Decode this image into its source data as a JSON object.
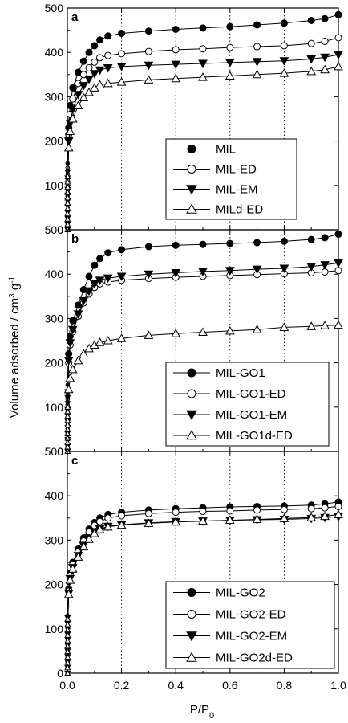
{
  "figure": {
    "ylabel": "Volume adsorbed / cm",
    "ylabel_sup": "3",
    "ylabel_rest": ".g",
    "ylabel_sup2": "-1",
    "xlabel_main": "P/P",
    "xlabel_sub": "0"
  },
  "chart_data": [
    {
      "panel": "a",
      "type": "line",
      "xlim": [
        0,
        1.0
      ],
      "ylim": [
        0,
        500
      ],
      "x_ticks": [
        0.0,
        0.2,
        0.4,
        0.6,
        0.8,
        1.0
      ],
      "x_tick_labels": [
        "0.0",
        "0.2",
        "0.4",
        "0.6",
        "0.8",
        "1.0"
      ],
      "y_ticks": [
        0,
        100,
        200,
        300,
        400,
        500
      ],
      "y_tick_labels": [
        "0",
        "100",
        "200",
        "300",
        "400",
        "500"
      ],
      "vlines": [
        0.2,
        0.4,
        0.6,
        0.8
      ],
      "legend_position": "center-right",
      "series": [
        {
          "name": "MIL",
          "marker": "filled-circle",
          "x": [
            0,
            0.002,
            0.005,
            0.01,
            0.02,
            0.04,
            0.06,
            0.08,
            0.1,
            0.12,
            0.15,
            0.2,
            0.3,
            0.4,
            0.5,
            0.6,
            0.7,
            0.8,
            0.9,
            0.95,
            1.0
          ],
          "y": [
            0,
            150,
            230,
            280,
            320,
            355,
            380,
            400,
            415,
            428,
            437,
            443,
            448,
            452,
            455,
            458,
            462,
            466,
            472,
            476,
            485
          ]
        },
        {
          "name": "MIL-ED",
          "marker": "open-circle",
          "x": [
            0,
            0.002,
            0.005,
            0.01,
            0.02,
            0.04,
            0.06,
            0.08,
            0.1,
            0.12,
            0.15,
            0.2,
            0.3,
            0.4,
            0.5,
            0.6,
            0.7,
            0.8,
            0.9,
            0.95,
            1.0
          ],
          "y": [
            0,
            140,
            215,
            260,
            295,
            330,
            350,
            365,
            378,
            388,
            393,
            397,
            402,
            406,
            408,
            411,
            413,
            415,
            420,
            425,
            433
          ]
        },
        {
          "name": "MIL-EM",
          "marker": "filled-down-triangle",
          "x": [
            0,
            0.002,
            0.005,
            0.01,
            0.02,
            0.04,
            0.06,
            0.08,
            0.1,
            0.12,
            0.15,
            0.2,
            0.3,
            0.4,
            0.5,
            0.6,
            0.7,
            0.8,
            0.9,
            0.95,
            1.0
          ],
          "y": [
            0,
            130,
            200,
            240,
            272,
            305,
            325,
            340,
            352,
            360,
            365,
            368,
            371,
            373,
            375,
            377,
            379,
            381,
            385,
            389,
            395
          ]
        },
        {
          "name": "MILd-ED",
          "marker": "open-up-triangle",
          "x": [
            0,
            0.002,
            0.005,
            0.01,
            0.02,
            0.04,
            0.06,
            0.08,
            0.1,
            0.12,
            0.15,
            0.2,
            0.3,
            0.4,
            0.5,
            0.6,
            0.7,
            0.8,
            0.9,
            0.95,
            1.0
          ],
          "y": [
            0,
            120,
            185,
            222,
            250,
            280,
            298,
            310,
            320,
            327,
            330,
            333,
            338,
            341,
            344,
            347,
            350,
            353,
            357,
            361,
            368
          ]
        }
      ]
    },
    {
      "panel": "b",
      "type": "line",
      "xlim": [
        0,
        1.0
      ],
      "ylim": [
        0,
        500
      ],
      "x_ticks": [
        0.0,
        0.2,
        0.4,
        0.6,
        0.8,
        1.0
      ],
      "x_tick_labels": [
        "0.0",
        "0.2",
        "0.4",
        "0.6",
        "0.8",
        "1.0"
      ],
      "y_ticks": [
        0,
        100,
        200,
        300,
        400,
        500
      ],
      "y_tick_labels": [
        "0",
        "100",
        "200",
        "300",
        "400",
        "500"
      ],
      "vlines": [
        0.2,
        0.4,
        0.6,
        0.8
      ],
      "legend_position": "center-right",
      "series": [
        {
          "name": "MIL-GO1",
          "marker": "filled-circle",
          "x": [
            0,
            0.002,
            0.005,
            0.01,
            0.02,
            0.04,
            0.06,
            0.08,
            0.1,
            0.12,
            0.15,
            0.2,
            0.3,
            0.4,
            0.5,
            0.6,
            0.7,
            0.8,
            0.9,
            0.95,
            1.0
          ],
          "y": [
            0,
            150,
            220,
            260,
            295,
            330,
            365,
            395,
            420,
            435,
            448,
            455,
            462,
            465,
            467,
            469,
            471,
            474,
            478,
            482,
            490
          ]
        },
        {
          "name": "MIL-GO1-ED",
          "marker": "open-circle",
          "x": [
            0,
            0.002,
            0.005,
            0.01,
            0.02,
            0.04,
            0.06,
            0.08,
            0.1,
            0.12,
            0.15,
            0.2,
            0.3,
            0.4,
            0.5,
            0.6,
            0.7,
            0.8,
            0.9,
            0.95,
            1.0
          ],
          "y": [
            0,
            130,
            200,
            240,
            270,
            305,
            335,
            355,
            370,
            378,
            382,
            386,
            390,
            393,
            395,
            397,
            399,
            401,
            403,
            405,
            408
          ]
        },
        {
          "name": "MIL-GO1-EM",
          "marker": "filled-down-triangle",
          "x": [
            0,
            0.002,
            0.005,
            0.01,
            0.02,
            0.04,
            0.06,
            0.08,
            0.1,
            0.12,
            0.15,
            0.2,
            0.3,
            0.4,
            0.5,
            0.6,
            0.7,
            0.8,
            0.9,
            0.95,
            1.0
          ],
          "y": [
            0,
            135,
            205,
            245,
            275,
            310,
            340,
            362,
            378,
            386,
            391,
            395,
            400,
            403,
            406,
            408,
            411,
            413,
            417,
            421,
            425
          ]
        },
        {
          "name": "MIL-GO1d-ED",
          "marker": "open-up-triangle",
          "x": [
            0,
            0.002,
            0.005,
            0.01,
            0.02,
            0.04,
            0.06,
            0.08,
            0.1,
            0.12,
            0.15,
            0.2,
            0.3,
            0.4,
            0.5,
            0.6,
            0.7,
            0.8,
            0.9,
            0.95,
            1.0
          ],
          "y": [
            0,
            100,
            140,
            165,
            185,
            205,
            220,
            232,
            240,
            246,
            250,
            255,
            262,
            266,
            269,
            272,
            275,
            280,
            282,
            284,
            285
          ]
        }
      ]
    },
    {
      "panel": "c",
      "type": "line",
      "xlim": [
        0,
        1.0
      ],
      "ylim": [
        0,
        500
      ],
      "x_ticks": [
        0.0,
        0.2,
        0.4,
        0.6,
        0.8,
        1.0
      ],
      "x_tick_labels": [
        "0.0",
        "0.2",
        "0.4",
        "0.6",
        "0.8",
        "1.0"
      ],
      "y_ticks": [
        0,
        100,
        200,
        300,
        400,
        500
      ],
      "y_tick_labels": [
        "0",
        "100",
        "200",
        "300",
        "400",
        "500"
      ],
      "vlines": [
        0.2,
        0.4,
        0.6,
        0.8
      ],
      "legend_position": "bottom-right",
      "series": [
        {
          "name": "MIL-GO2",
          "marker": "filled-circle",
          "x": [
            0,
            0.002,
            0.005,
            0.01,
            0.02,
            0.04,
            0.06,
            0.08,
            0.1,
            0.12,
            0.15,
            0.2,
            0.3,
            0.4,
            0.5,
            0.6,
            0.7,
            0.8,
            0.9,
            0.95,
            1.0
          ],
          "y": [
            0,
            130,
            190,
            225,
            250,
            280,
            305,
            325,
            340,
            350,
            358,
            363,
            368,
            371,
            373,
            375,
            376,
            377,
            379,
            382,
            386
          ]
        },
        {
          "name": "MIL-GO2-ED",
          "marker": "open-circle",
          "x": [
            0,
            0.002,
            0.005,
            0.01,
            0.02,
            0.04,
            0.06,
            0.08,
            0.1,
            0.12,
            0.15,
            0.2,
            0.3,
            0.4,
            0.5,
            0.6,
            0.7,
            0.8,
            0.9,
            0.95,
            1.0
          ],
          "y": [
            0,
            128,
            185,
            220,
            245,
            273,
            298,
            318,
            333,
            342,
            350,
            355,
            360,
            363,
            365,
            366,
            368,
            369,
            371,
            373,
            376
          ]
        },
        {
          "name": "MIL-GO2-EM",
          "marker": "filled-down-triangle",
          "x": [
            0,
            0.002,
            0.005,
            0.01,
            0.02,
            0.04,
            0.06,
            0.08,
            0.1,
            0.12,
            0.15,
            0.2,
            0.3,
            0.4,
            0.5,
            0.6,
            0.7,
            0.8,
            0.9,
            0.95,
            1.0
          ],
          "y": [
            0,
            125,
            180,
            213,
            238,
            265,
            288,
            305,
            318,
            325,
            331,
            335,
            339,
            342,
            343,
            345,
            346,
            347,
            349,
            351,
            353
          ]
        },
        {
          "name": "MIL-GO2d-ED",
          "marker": "open-up-triangle",
          "x": [
            0,
            0.002,
            0.005,
            0.01,
            0.02,
            0.04,
            0.06,
            0.08,
            0.1,
            0.12,
            0.15,
            0.2,
            0.3,
            0.4,
            0.5,
            0.6,
            0.7,
            0.8,
            0.9,
            0.95,
            1.0
          ],
          "y": [
            0,
            122,
            178,
            210,
            235,
            262,
            285,
            302,
            315,
            324,
            330,
            334,
            338,
            341,
            343,
            345,
            347,
            349,
            351,
            354,
            358
          ]
        }
      ]
    }
  ]
}
